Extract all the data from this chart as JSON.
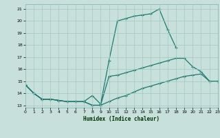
{
  "color": "#1a7a6e",
  "bg_color": "#c8e0dc",
  "grid_color": "#a0c8c0",
  "xlabel": "Humidex (Indice chaleur)",
  "xlim": [
    0,
    23
  ],
  "ylim": [
    12.8,
    21.4
  ],
  "yticks": [
    13,
    14,
    15,
    16,
    17,
    18,
    19,
    20,
    21
  ],
  "xticks": [
    0,
    1,
    2,
    3,
    4,
    5,
    6,
    7,
    8,
    9,
    10,
    11,
    12,
    13,
    14,
    15,
    16,
    17,
    18,
    19,
    20,
    21,
    22,
    23
  ],
  "line1_x": [
    0,
    1,
    2,
    3,
    4,
    5,
    6,
    7,
    8,
    9,
    10,
    11,
    12,
    13,
    14,
    15,
    16,
    17,
    18
  ],
  "line1_y": [
    14.7,
    14.0,
    13.5,
    13.5,
    13.4,
    13.3,
    13.3,
    13.3,
    13.8,
    13.1,
    16.7,
    20.0,
    20.2,
    20.4,
    20.5,
    20.6,
    21.0,
    19.3,
    17.8
  ],
  "line2_x": [
    0,
    1,
    2,
    3,
    4,
    5,
    6,
    7,
    8,
    9,
    10,
    11,
    12,
    13,
    14,
    15,
    16,
    17,
    18,
    19,
    20,
    21,
    22,
    23
  ],
  "line2_y": [
    14.7,
    14.0,
    13.5,
    13.5,
    13.4,
    13.3,
    13.3,
    13.3,
    13.0,
    13.0,
    15.4,
    15.5,
    15.7,
    15.9,
    16.1,
    16.3,
    16.5,
    16.7,
    16.9,
    16.9,
    16.2,
    15.8,
    15.0,
    15.0
  ],
  "line3_x": [
    0,
    1,
    2,
    3,
    4,
    5,
    6,
    7,
    8,
    9,
    10,
    11,
    12,
    13,
    14,
    15,
    16,
    17,
    18,
    19,
    20,
    21,
    22,
    23
  ],
  "line3_y": [
    14.7,
    14.0,
    13.5,
    13.5,
    13.4,
    13.3,
    13.3,
    13.3,
    13.0,
    13.0,
    13.3,
    13.6,
    13.8,
    14.1,
    14.4,
    14.6,
    14.8,
    15.0,
    15.2,
    15.4,
    15.5,
    15.6,
    15.0,
    15.0
  ]
}
